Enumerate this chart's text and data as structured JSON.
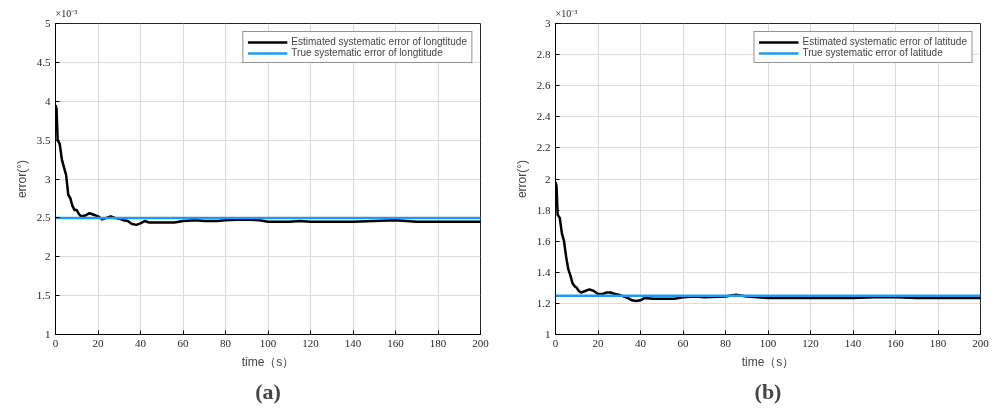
{
  "chart_data": [
    {
      "type": "line",
      "xlabel": "time（s）",
      "ylabel": "error(°)",
      "annotations": [
        "×10⁻³",
        "(a)"
      ],
      "xlim": [
        0,
        200
      ],
      "xticks": [
        0,
        20,
        40,
        60,
        80,
        100,
        120,
        140,
        160,
        180,
        200
      ],
      "ylim": [
        1,
        5
      ],
      "yticks": [
        1,
        1.5,
        2,
        2.5,
        3,
        3.5,
        4,
        4.5,
        5
      ],
      "grid": true,
      "legend": "top right",
      "line_style": "solid",
      "marker": "none",
      "series": [
        {
          "name": "Estimated systematic error of longtitude",
          "color": "#000000",
          "x": [
            0,
            0.5,
            1,
            2,
            3,
            4,
            5,
            6,
            7,
            8,
            9,
            10,
            11,
            12,
            14,
            16,
            18,
            20,
            22,
            24,
            26,
            28,
            30,
            32,
            34,
            36,
            38,
            40,
            42,
            44,
            50,
            56,
            60,
            66,
            70,
            76,
            80,
            88,
            96,
            100,
            110,
            115,
            120,
            130,
            140,
            150,
            160,
            170,
            180,
            190,
            200
          ],
          "values": [
            3.95,
            3.9,
            3.5,
            3.45,
            3.25,
            3.15,
            3.05,
            2.8,
            2.75,
            2.65,
            2.6,
            2.6,
            2.55,
            2.52,
            2.53,
            2.56,
            2.54,
            2.52,
            2.48,
            2.5,
            2.52,
            2.5,
            2.49,
            2.47,
            2.46,
            2.42,
            2.41,
            2.43,
            2.46,
            2.44,
            2.44,
            2.44,
            2.46,
            2.47,
            2.46,
            2.46,
            2.47,
            2.48,
            2.47,
            2.45,
            2.45,
            2.46,
            2.45,
            2.45,
            2.45,
            2.46,
            2.47,
            2.45,
            2.45,
            2.45,
            2.45
          ]
        },
        {
          "name": "True systematic error of longtitude",
          "color": "#1e9bf0",
          "x": [
            0,
            200
          ],
          "values": [
            2.5,
            2.5
          ]
        }
      ]
    },
    {
      "type": "line",
      "xlabel": "time（s）",
      "ylabel": "error(°)",
      "annotations": [
        "×10⁻³",
        "(b)"
      ],
      "xlim": [
        0,
        200
      ],
      "xticks": [
        0,
        20,
        40,
        60,
        80,
        100,
        120,
        140,
        160,
        180,
        200
      ],
      "ylim": [
        1,
        3
      ],
      "yticks": [
        1,
        1.2,
        1.4,
        1.6,
        1.8,
        2,
        2.2,
        2.4,
        2.6,
        2.8,
        3
      ],
      "grid": true,
      "legend": "top right",
      "line_style": "solid",
      "marker": "none",
      "series": [
        {
          "name": "Estimated systematic error of latitude",
          "color": "#000000",
          "x": [
            0,
            0.5,
            1,
            2,
            3,
            4,
            5,
            6,
            7,
            8,
            9,
            10,
            11,
            12,
            14,
            16,
            18,
            20,
            22,
            24,
            26,
            28,
            30,
            32,
            34,
            36,
            38,
            40,
            42,
            46,
            50,
            56,
            60,
            66,
            70,
            80,
            85,
            90,
            100,
            110,
            120,
            130,
            140,
            150,
            160,
            170,
            180,
            190,
            200
          ],
          "values": [
            1.98,
            1.95,
            1.77,
            1.75,
            1.65,
            1.6,
            1.5,
            1.42,
            1.38,
            1.33,
            1.31,
            1.3,
            1.28,
            1.27,
            1.28,
            1.29,
            1.28,
            1.26,
            1.26,
            1.27,
            1.27,
            1.26,
            1.255,
            1.245,
            1.235,
            1.22,
            1.215,
            1.22,
            1.235,
            1.23,
            1.23,
            1.23,
            1.24,
            1.245,
            1.24,
            1.245,
            1.255,
            1.245,
            1.235,
            1.235,
            1.235,
            1.235,
            1.235,
            1.24,
            1.24,
            1.235,
            1.235,
            1.235,
            1.235
          ]
        },
        {
          "name": "True systematic error of latitude",
          "color": "#1e9bf0",
          "x": [
            0,
            200
          ],
          "values": [
            1.25,
            1.25
          ]
        }
      ]
    }
  ]
}
